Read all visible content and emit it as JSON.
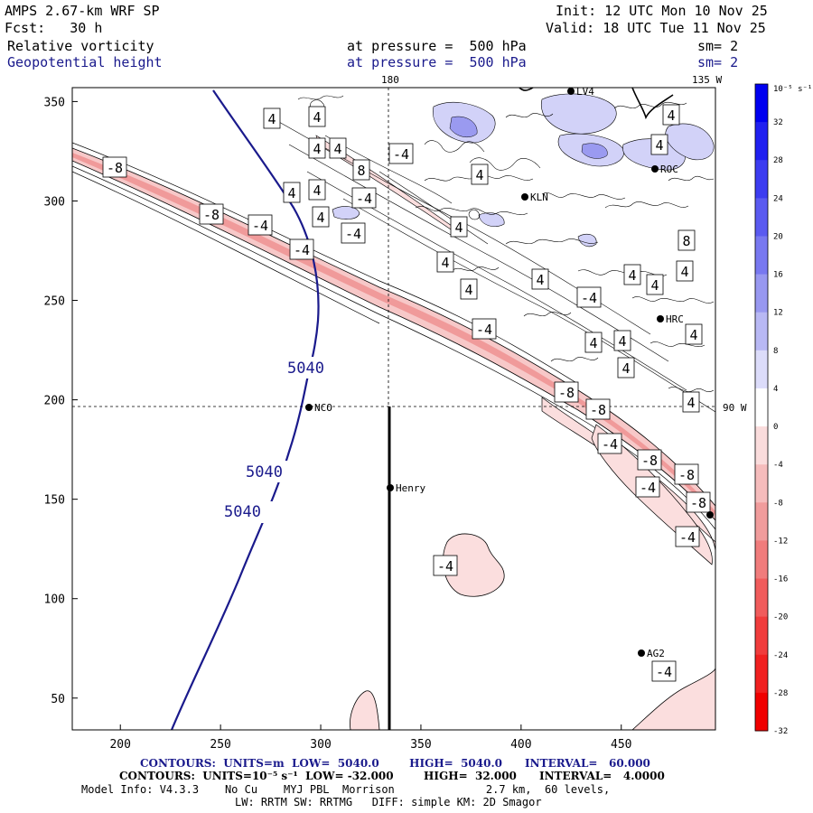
{
  "header": {
    "model": "AMPS 2.67-km WRF SP",
    "forecast": "Fcst:   30 h",
    "init": "Init: 12 UTC Mon 10 Nov 25",
    "valid": "Valid: 18 UTC Tue 11 Nov 25",
    "field1_name": "Relative vorticity",
    "field1_level": "at pressure =  500 hPa",
    "field1_sm": "sm= 2",
    "field2_name": "Geopotential height",
    "field2_level": "at pressure =  500 hPa",
    "field2_sm": "sm= 2"
  },
  "map": {
    "lon_labels": {
      "top": "180",
      "top_right": "135 W",
      "right": "90 W"
    },
    "stations": [
      {
        "id": "LV4",
        "label": "LV4"
      },
      {
        "id": "ROC",
        "label": "ROC"
      },
      {
        "id": "KLN",
        "label": "KLN"
      },
      {
        "id": "HRC",
        "label": "HRC"
      },
      {
        "id": "NCO",
        "label": "NCO"
      },
      {
        "id": "Henry",
        "label": "Henry"
      },
      {
        "id": "AG2",
        "label": "AG2"
      }
    ],
    "height_contour_label": "5040",
    "colors": {
      "height_contour": "#1a1a8c",
      "positive": "#3c3cf0",
      "negative": "#f07070"
    }
  },
  "chart_data": {
    "type": "contour-map",
    "x_axis": {
      "ticks": [
        "200",
        "250",
        "300",
        "350",
        "400",
        "450"
      ],
      "range": [
        176,
        497
      ]
    },
    "y_axis": {
      "ticks": [
        "50",
        "100",
        "150",
        "200",
        "250",
        "300",
        "350"
      ],
      "range": [
        34,
        357
      ]
    },
    "contour_labels_vorticity": [
      "4",
      "-4",
      "8",
      "-8"
    ],
    "height_contour_value": 5040,
    "colorbar": {
      "unit_label": "10⁻⁵ s⁻¹",
      "labels": [
        "32",
        "28",
        "24",
        "20",
        "16",
        "12",
        "8",
        "4",
        "0",
        "-4",
        "-8",
        "-12",
        "-16",
        "-20",
        "-24",
        "-28",
        "-32"
      ],
      "colors": [
        "#0000f0",
        "#2020f0",
        "#3c3cf0",
        "#5a5af0",
        "#7878f0",
        "#9898f0",
        "#b8b8f4",
        "#dcdcfa",
        "#ffffff",
        "#fadcdc",
        "#f5bcbc",
        "#f09c9c",
        "#f07c7c",
        "#f05c5c",
        "#f03c3c",
        "#f02020",
        "#f00000"
      ]
    }
  },
  "footer": {
    "contours_height": "CONTOURS:  UNITS=m  LOW=  5040.0        HIGH=  5040.0      INTERVAL=   60.000",
    "contours_vort": "CONTOURS:  UNITS=10⁻⁵ s⁻¹  LOW= -32.000        HIGH=  32.000      INTERVAL=   4.0000",
    "model_info": "Model Info: V4.3.3    No Cu    MYJ PBL  Morrison              2.7 km,  60 levels,",
    "physics": "LW: RRTM SW: RRTMG   DIFF: simple KM: 2D Smagor"
  }
}
